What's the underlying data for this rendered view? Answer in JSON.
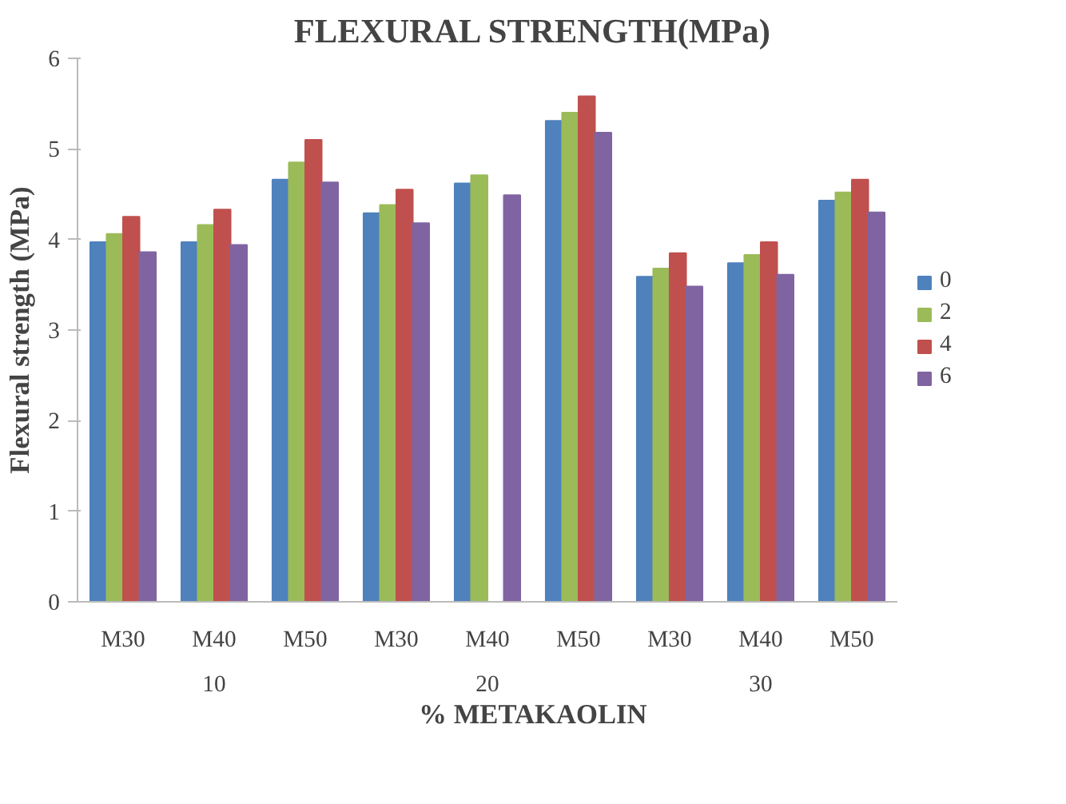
{
  "chart_data": {
    "type": "bar",
    "title": "FLEXURAL STRENGTH(MPa)",
    "xlabel": "% METAKAOLIN",
    "ylabel": "Flexural strength (MPa)",
    "categories": [
      "M30",
      "M40",
      "M50",
      "M30",
      "M40",
      "M50",
      "M30",
      "M40",
      "M50"
    ],
    "annotations": [
      "10",
      "20",
      "30"
    ],
    "series": [
      {
        "name": "0",
        "color": "#4f81bd",
        "values": [
          3.97,
          3.97,
          4.66,
          4.29,
          4.62,
          5.31,
          3.59,
          3.74,
          4.43
        ]
      },
      {
        "name": "2",
        "color": "#9bbb59",
        "values": [
          4.06,
          4.16,
          4.85,
          4.38,
          4.71,
          5.4,
          3.68,
          3.83,
          4.52
        ]
      },
      {
        "name": "4",
        "color": "#c0504d",
        "values": [
          4.25,
          4.33,
          5.1,
          4.55,
          null,
          5.58,
          3.85,
          3.97,
          4.66
        ]
      },
      {
        "name": "6",
        "color": "#8064a2",
        "values": [
          3.86,
          3.94,
          4.63,
          4.18,
          4.49,
          5.18,
          3.48,
          3.61,
          4.3
        ]
      }
    ],
    "ylim": [
      0,
      6
    ],
    "yticks": [
      0,
      1,
      2,
      3,
      4,
      5,
      6
    ],
    "grid": false,
    "legend": "right"
  }
}
